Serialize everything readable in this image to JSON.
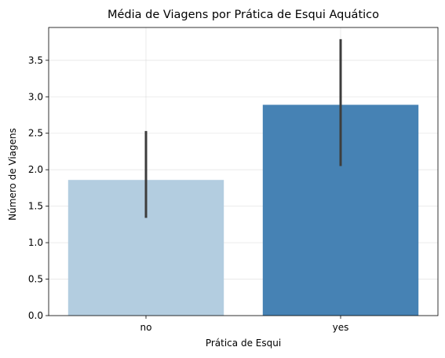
{
  "chart_data": {
    "type": "bar",
    "title": "Média de Viagens por Prática de Esqui Aquático",
    "xlabel": "Prática de Esqui",
    "ylabel": "Número de Viagens",
    "categories": [
      "no",
      "yes"
    ],
    "values": [
      1.86,
      2.89
    ],
    "error_low": [
      1.34,
      2.05
    ],
    "error_high": [
      2.53,
      3.79
    ],
    "colors": [
      "#b3cde0",
      "#4682b4"
    ],
    "error_color": "#3d3d3d",
    "ylim": [
      0,
      3.95
    ],
    "yticks": [
      "0.0",
      "0.5",
      "1.0",
      "1.5",
      "2.0",
      "2.5",
      "3.0",
      "3.5"
    ],
    "grid": true
  }
}
